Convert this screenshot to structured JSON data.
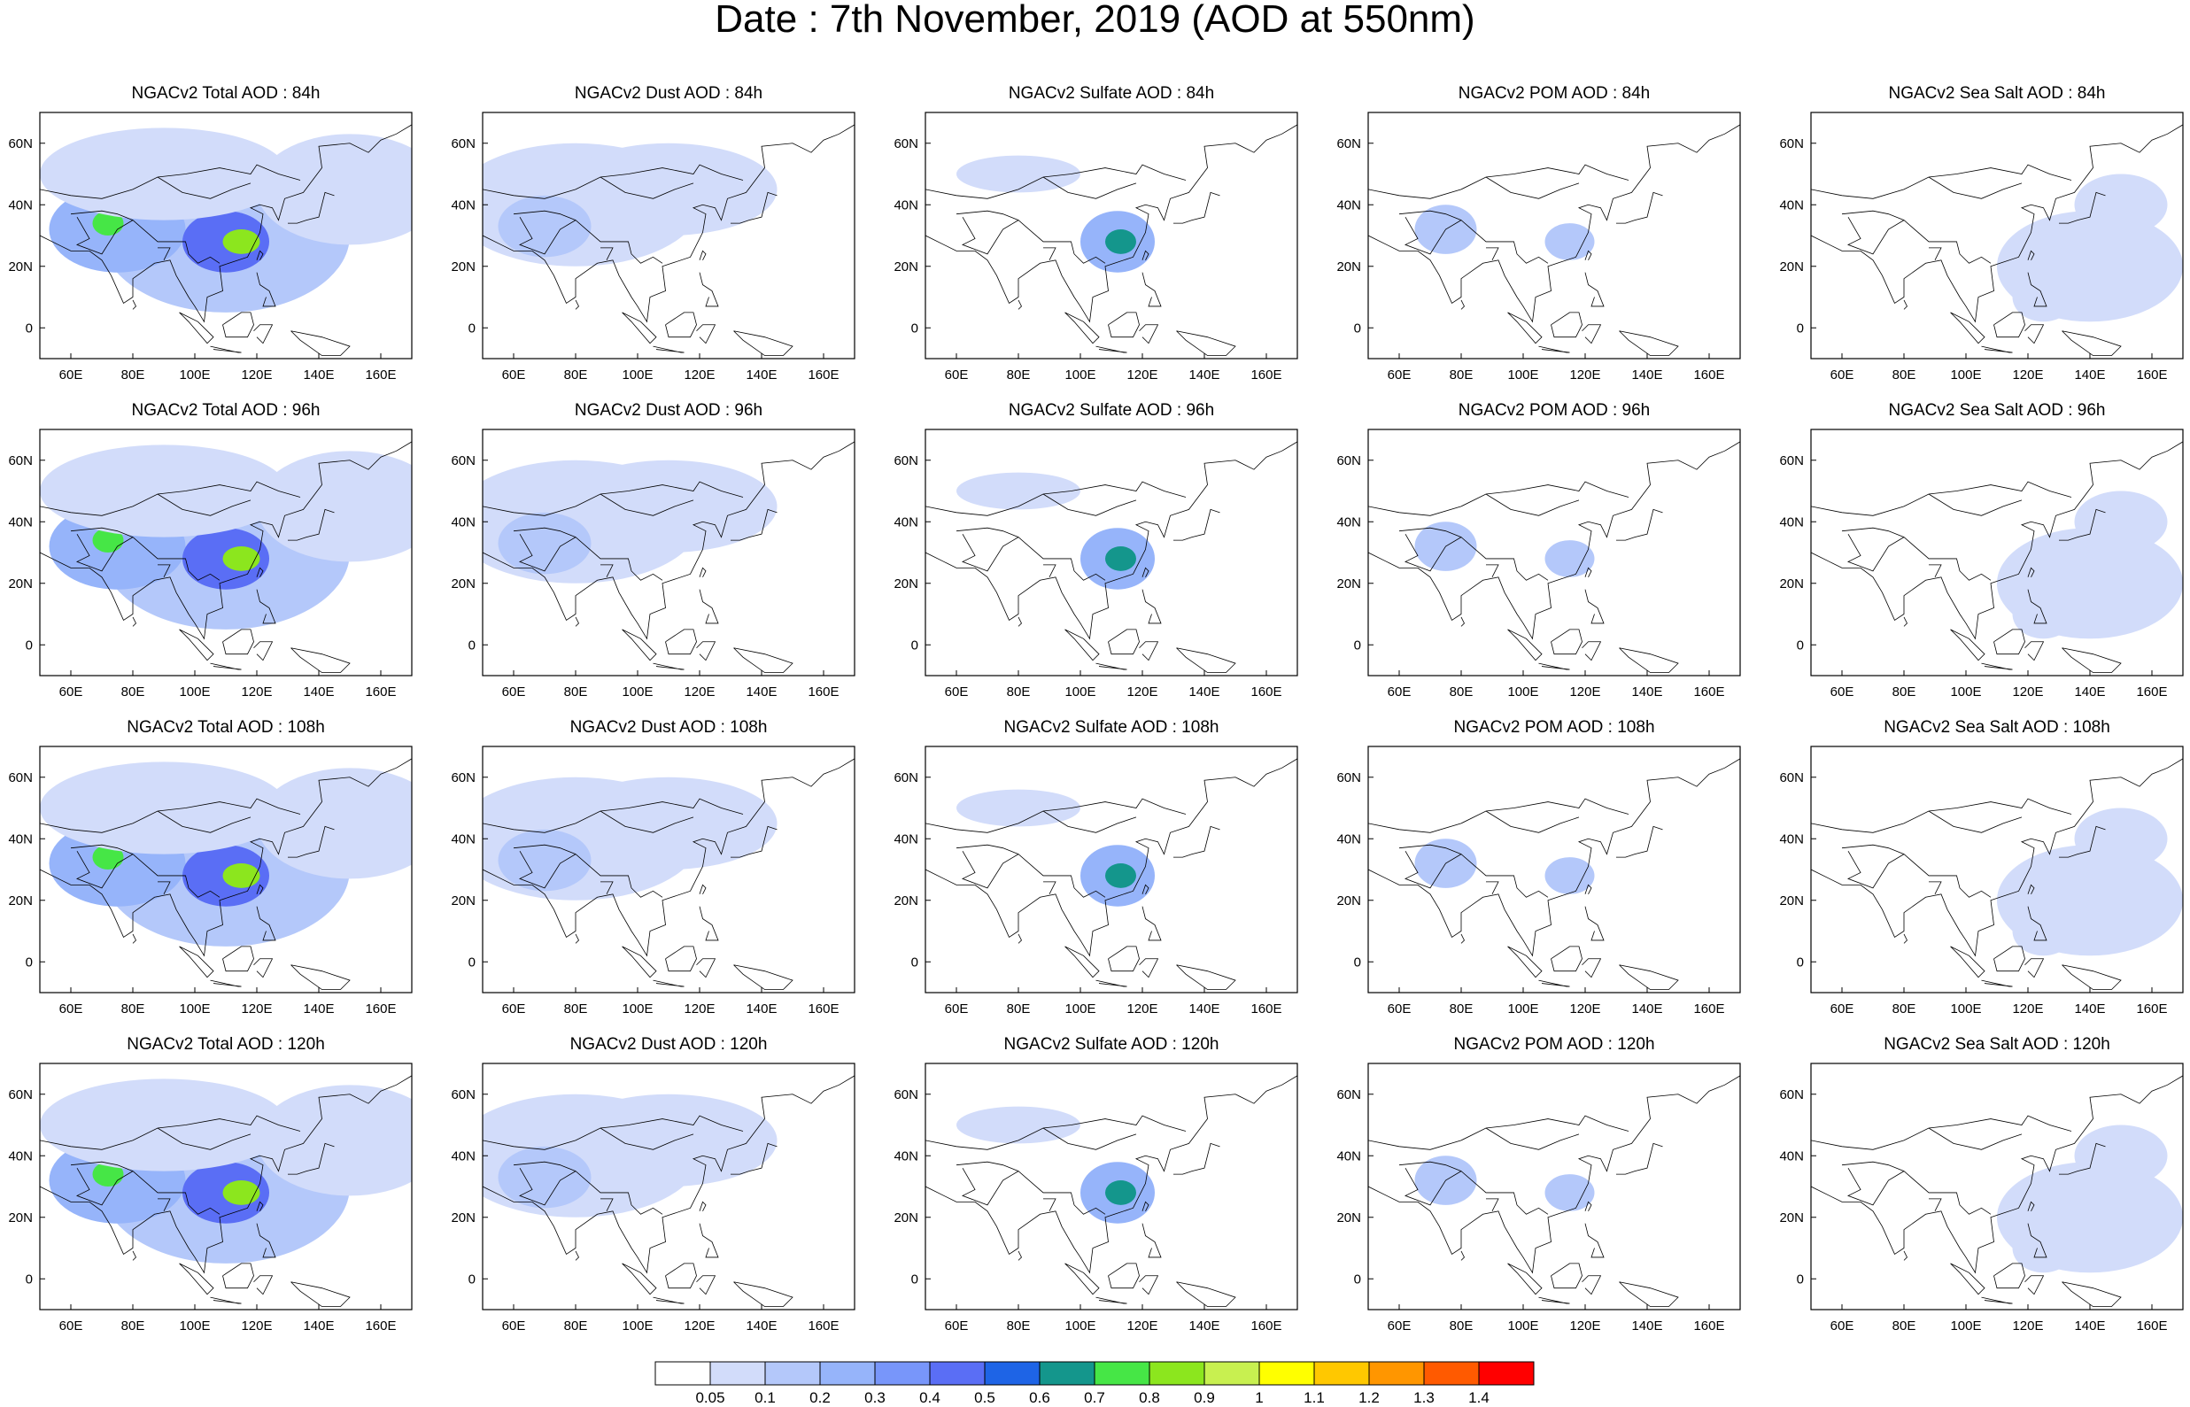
{
  "title": "Date : 7th November, 2019 (AOD at 550nm)",
  "rows": [
    {
      "lead": "84h",
      "panels": [
        "NGACv2 Total AOD : 84h",
        "NGACv2 Dust AOD : 84h",
        "NGACv2 Sulfate AOD : 84h",
        "NGACv2 POM AOD : 84h",
        "NGACv2 Sea Salt AOD : 84h"
      ]
    },
    {
      "lead": "96h",
      "panels": [
        "NGACv2 Total AOD : 96h",
        "NGACv2 Dust AOD : 96h",
        "NGACv2 Sulfate AOD : 96h",
        "NGACv2 POM AOD : 96h",
        "NGACv2 Sea Salt AOD : 96h"
      ]
    },
    {
      "lead": "108h",
      "panels": [
        "NGACv2 Total AOD : 108h",
        "NGACv2 Dust AOD : 108h",
        "NGACv2 Sulfate AOD : 108h",
        "NGACv2 POM AOD : 108h",
        "NGACv2 Sea Salt AOD : 108h"
      ]
    },
    {
      "lead": "120h",
      "panels": [
        "NGACv2 Total AOD : 120h",
        "NGACv2 Dust AOD : 120h",
        "NGACv2 Sulfate AOD : 120h",
        "NGACv2 POM AOD : 120h",
        "NGACv2 Sea Salt  AOD : 120h"
      ]
    }
  ],
  "species": [
    "total",
    "dust",
    "sulfate",
    "pom",
    "seasalt"
  ],
  "lon_ticks": [
    "60E",
    "80E",
    "100E",
    "120E",
    "140E",
    "160E"
  ],
  "lat_ticks": [
    "60N",
    "40N",
    "20N",
    "0"
  ],
  "lon_values": [
    60,
    80,
    100,
    120,
    140,
    160
  ],
  "lat_values": [
    60,
    40,
    20,
    0
  ],
  "map_extent": {
    "lon": [
      50,
      170
    ],
    "lat": [
      -10,
      70
    ]
  },
  "colorbar": {
    "levels": [
      "0.05",
      "0.1",
      "0.2",
      "0.3",
      "0.4",
      "0.5",
      "0.6",
      "0.7",
      "0.8",
      "0.9",
      "1",
      "1.1",
      "1.2",
      "1.3",
      "1.4"
    ],
    "colors": [
      "#ffffff",
      "#d2dcfa",
      "#b4c8fa",
      "#96b4fa",
      "#7896fa",
      "#5a6ef5",
      "#1e64e6",
      "#14968c",
      "#46e646",
      "#8ce61e",
      "#c8f050",
      "#ffff00",
      "#ffc800",
      "#ff9600",
      "#ff5a00",
      "#ff0000"
    ]
  }
}
